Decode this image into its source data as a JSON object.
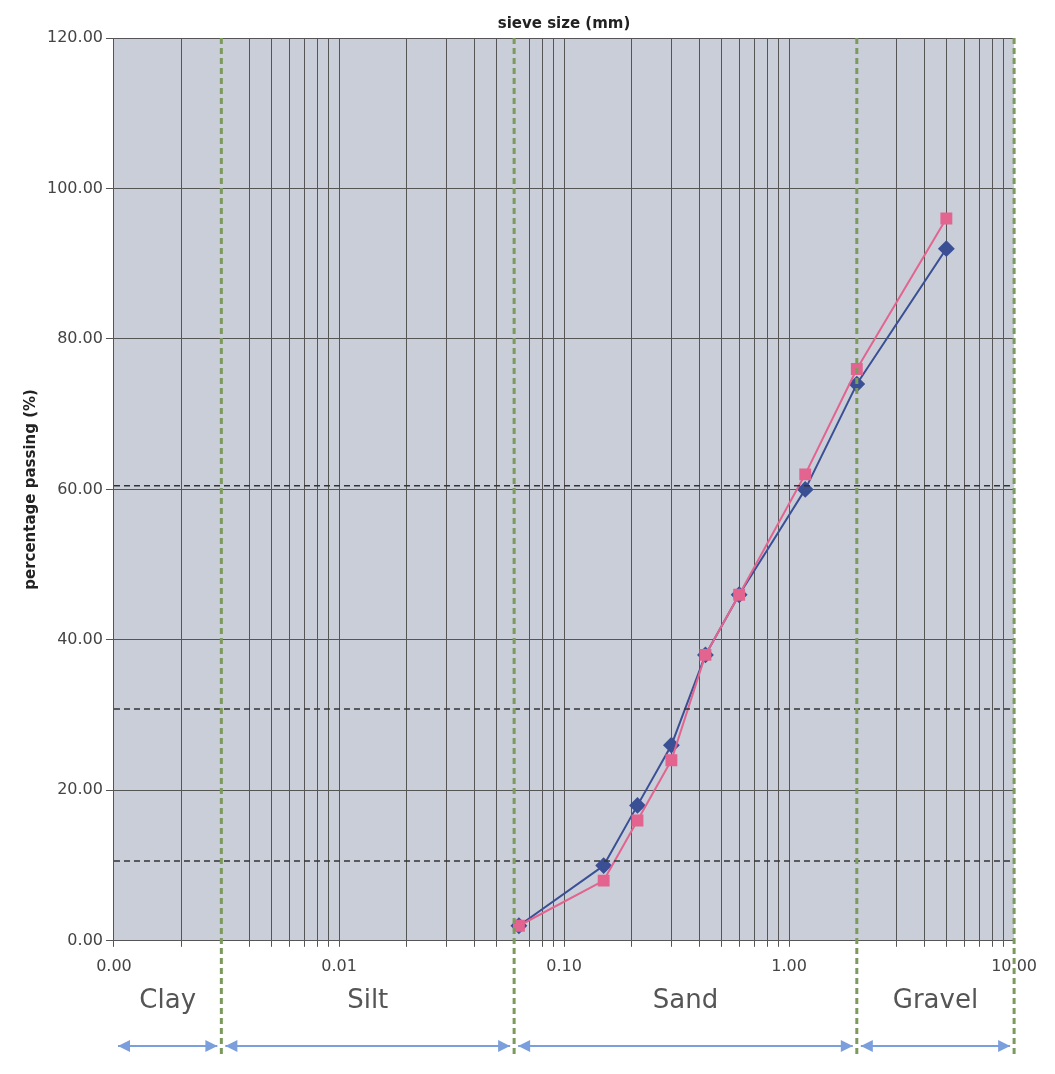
{
  "chart_data": {
    "type": "line",
    "xlabel": "sieve size (mm)",
    "ylabel": "percentage passing (%)",
    "log": "x",
    "grid": true,
    "legend": false,
    "line_style": "solid",
    "xlim": [
      0.001,
      10
    ],
    "xticks": [
      {
        "value": 0.001,
        "label": "0.00"
      },
      {
        "value": 0.002,
        "label": null
      },
      {
        "value": 0.004,
        "label": null
      },
      {
        "value": 0.005,
        "label": null
      },
      {
        "value": 0.006,
        "label": null
      },
      {
        "value": 0.007,
        "label": null
      },
      {
        "value": 0.008,
        "label": null
      },
      {
        "value": 0.009,
        "label": null
      },
      {
        "value": 0.01,
        "label": "0.01"
      },
      {
        "value": 0.02,
        "label": null
      },
      {
        "value": 0.03,
        "label": null
      },
      {
        "value": 0.04,
        "label": null
      },
      {
        "value": 0.05,
        "label": null
      },
      {
        "value": 0.07,
        "label": null
      },
      {
        "value": 0.08,
        "label": null
      },
      {
        "value": 0.09,
        "label": null
      },
      {
        "value": 0.1,
        "label": "0.10"
      },
      {
        "value": 0.2,
        "label": null
      },
      {
        "value": 0.3,
        "label": null
      },
      {
        "value": 0.4,
        "label": null
      },
      {
        "value": 0.5,
        "label": null
      },
      {
        "value": 0.6,
        "label": null
      },
      {
        "value": 0.7,
        "label": null
      },
      {
        "value": 0.8,
        "label": null
      },
      {
        "value": 0.9,
        "label": null
      },
      {
        "value": 1,
        "label": "1.00"
      },
      {
        "value": 3,
        "label": null
      },
      {
        "value": 4,
        "label": null
      },
      {
        "value": 5,
        "label": null
      },
      {
        "value": 6,
        "label": null
      },
      {
        "value": 7,
        "label": null
      },
      {
        "value": 8,
        "label": null
      },
      {
        "value": 9,
        "label": null
      },
      {
        "value": 10,
        "label": "10.00"
      }
    ],
    "ylim": [
      0,
      120
    ],
    "yticks": [
      {
        "value": 0,
        "label": "0.00"
      },
      {
        "value": 20,
        "label": "20.00"
      },
      {
        "value": 40,
        "label": "40.00"
      },
      {
        "value": 60,
        "label": "60.00"
      },
      {
        "value": 80,
        "label": "80.00"
      },
      {
        "value": 100,
        "label": "100.00"
      },
      {
        "value": 120,
        "label": "120.00"
      }
    ],
    "x": [
      0.063,
      0.15,
      0.212,
      0.3,
      0.425,
      0.6,
      1.18,
      2,
      5
    ],
    "series": [
      {
        "color": "#3b4f94",
        "marker": "diamond",
        "values": [
          2,
          10,
          18,
          26,
          38,
          46,
          60,
          74,
          92
        ]
      },
      {
        "color": "#e2648f",
        "marker": "square",
        "values": [
          2,
          8,
          16,
          24,
          38,
          46,
          62,
          76,
          96
        ]
      }
    ],
    "ref_lines": [
      {
        "axis": "y",
        "value": 60.5,
        "color": "#333333",
        "line_style": "dashed"
      },
      {
        "axis": "y",
        "value": 30.8,
        "color": "#333333",
        "line_style": "dashed"
      },
      {
        "axis": "y",
        "value": 10.6,
        "color": "#333333",
        "line_style": "dashed"
      },
      {
        "axis": "x",
        "value": 0.003,
        "color": "#7c9a5c",
        "line_style": "dashed"
      },
      {
        "axis": "x",
        "value": 0.06,
        "color": "#7c9a5c",
        "line_style": "dashed"
      },
      {
        "axis": "x",
        "value": 2,
        "color": "#7c9a5c",
        "line_style": "dashed"
      },
      {
        "axis": "x",
        "value": 10,
        "color": "#7c9a5c",
        "line_style": "dashed"
      }
    ],
    "annotations": [
      "Clay",
      "Silt",
      "Sand",
      "Gravel"
    ]
  }
}
